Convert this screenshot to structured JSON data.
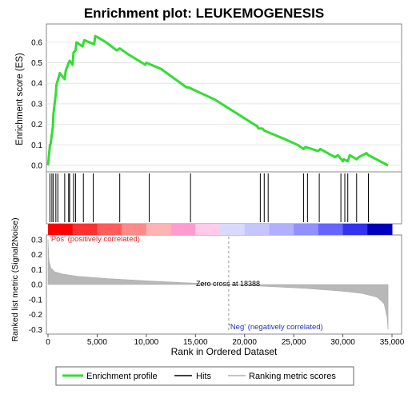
{
  "chart_data": {
    "type": "line",
    "title": "Enrichment plot: LEUKEMOGENESIS",
    "xlabel": "Rank in Ordered Dataset",
    "xlim": [
      0,
      35000
    ],
    "xticks": [
      0,
      5000,
      10000,
      15000,
      20000,
      25000,
      30000,
      35000
    ],
    "xtick_labels": [
      "0",
      "5,000",
      "10,000",
      "15,000",
      "20,000",
      "25,000",
      "30,000",
      "35,000"
    ],
    "es_panel": {
      "ylabel": "Enrichment score (ES)",
      "ylim": [
        0,
        0.65
      ],
      "yticks": [
        "0.0",
        "0.1",
        "0.2",
        "0.3",
        "0.4",
        "0.5",
        "0.6"
      ],
      "series": [
        {
          "name": "Enrichment profile",
          "color": "#33dd33",
          "x": [
            0,
            200,
            250,
            500,
            550,
            800,
            850,
            1200,
            1700,
            1800,
            2100,
            2200,
            2500,
            2600,
            2800,
            2900,
            3500,
            3700,
            4200,
            4700,
            4800,
            5200,
            5900,
            7000,
            7300,
            8200,
            9900,
            10000,
            11500,
            14100,
            14300,
            17000,
            21300,
            21400,
            21800,
            22000,
            24000,
            25400,
            26000,
            26200,
            27500,
            27700,
            29200,
            29500,
            30000,
            30100,
            30500,
            30700,
            31400,
            31600,
            32400,
            32600,
            34600
          ],
          "y": [
            0.0,
            0.1,
            0.1,
            0.19,
            0.25,
            0.35,
            0.39,
            0.45,
            0.42,
            0.46,
            0.5,
            0.51,
            0.49,
            0.55,
            0.56,
            0.6,
            0.58,
            0.61,
            0.6,
            0.59,
            0.63,
            0.62,
            0.6,
            0.56,
            0.57,
            0.54,
            0.49,
            0.5,
            0.47,
            0.38,
            0.38,
            0.32,
            0.19,
            0.18,
            0.18,
            0.17,
            0.13,
            0.1,
            0.08,
            0.09,
            0.07,
            0.08,
            0.04,
            0.05,
            0.02,
            0.03,
            0.02,
            0.05,
            0.03,
            0.04,
            0.06,
            0.05,
            0.0
          ]
        }
      ]
    },
    "hits": {
      "name": "Hits",
      "x": [
        200,
        400,
        550,
        800,
        1000,
        1700,
        2100,
        2200,
        2600,
        2800,
        3600,
        4600,
        7300,
        10300,
        14500,
        21600,
        22000,
        22400,
        26000,
        26400,
        27600,
        29800,
        30200,
        30500,
        31400,
        32600
      ]
    },
    "heatmap_bar": {
      "colors": [
        "#ff0000",
        "#ff3030",
        "#ff5c5c",
        "#ff8a8a",
        "#ffb4b4",
        "#ff9ccf",
        "#ffcbe8",
        "#d9d9ff",
        "#c6c6ff",
        "#b0b0ff",
        "#9090ff",
        "#6666ff",
        "#3333ee",
        "#0000bb"
      ],
      "pos_label": "'Pos' (positively correlated)",
      "neg_label": "'Neg' (negatively correlated)"
    },
    "metric_panel": {
      "ylabel": "Ranked list metric (Signal2Noise)",
      "ylim": [
        -0.32,
        0.32
      ],
      "yticks": [
        "0.3",
        "0.2",
        "0.1",
        "0.0",
        "-0.1",
        "-0.2",
        "-0.3"
      ],
      "zero_cross_label": "Zero cross at 18388",
      "zero_cross": 18388,
      "series": {
        "name": "Ranking metric scores",
        "x": [
          0,
          100,
          300,
          700,
          1500,
          3000,
          6000,
          10000,
          14000,
          18388,
          22000,
          26000,
          30000,
          32000,
          33500,
          34200,
          34500,
          34600
        ],
        "y": [
          0.3,
          0.16,
          0.11,
          0.085,
          0.07,
          0.055,
          0.04,
          0.025,
          0.012,
          0.0,
          -0.012,
          -0.025,
          -0.045,
          -0.06,
          -0.085,
          -0.13,
          -0.22,
          -0.3
        ]
      }
    },
    "legend": {
      "placement": "bottom",
      "entries": [
        {
          "label": "Enrichment profile",
          "color": "#33dd33"
        },
        {
          "label": "Hits",
          "color": "#000000"
        },
        {
          "label": "Ranking metric scores",
          "color": "#b0b0b0"
        }
      ]
    }
  }
}
